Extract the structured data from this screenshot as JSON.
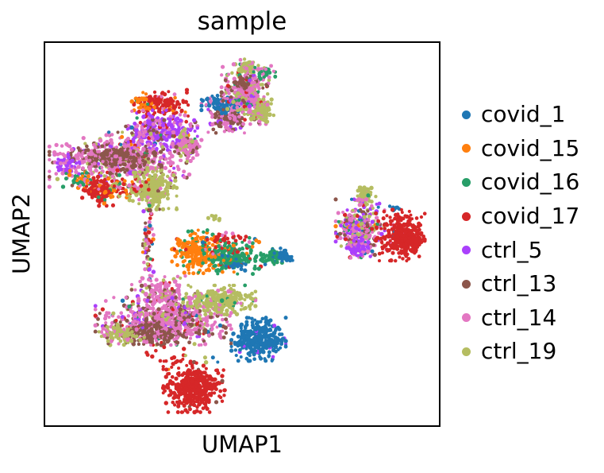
{
  "chart_data": {
    "type": "scatter",
    "title": "sample",
    "xlabel": "UMAP1",
    "ylabel": "UMAP2",
    "axes": {
      "frame": true,
      "x_ticks": [],
      "y_ticks": [],
      "note": "UMAP embedding; no tick marks or tick labels; square black frame"
    },
    "legend": {
      "position": "right-outside",
      "entries": [
        "covid_1",
        "covid_15",
        "covid_16",
        "covid_17",
        "ctrl_5",
        "ctrl_13",
        "ctrl_14",
        "ctrl_19"
      ]
    },
    "palette": {
      "covid_1": "#1f77b4",
      "covid_15": "#ff7f0e",
      "covid_16": "#279e68",
      "covid_17": "#d62728",
      "ctrl_5": "#aa40fc",
      "ctrl_13": "#8c564b",
      "ctrl_14": "#e377c2",
      "ctrl_19": "#b5bd61"
    },
    "point_radius_px": 2.3,
    "seed": 42,
    "clusters": [
      {
        "name": "tl-red-top",
        "cx": 0.294,
        "cy": 0.161,
        "rx": 0.06,
        "ry": 0.033,
        "n": 150,
        "mix": {
          "covid_17": 0.85,
          "covid_15": 0.1,
          "ctrl_14": 0.05
        }
      },
      {
        "name": "tl-orange-specks",
        "cx": 0.25,
        "cy": 0.155,
        "rx": 0.026,
        "ry": 0.022,
        "n": 28,
        "mix": {
          "covid_15": 0.9,
          "covid_16": 0.1
        }
      },
      {
        "name": "tl-violet",
        "cx": 0.29,
        "cy": 0.229,
        "rx": 0.084,
        "ry": 0.046,
        "n": 300,
        "mix": {
          "ctrl_5": 0.58,
          "ctrl_14": 0.18,
          "ctrl_13": 0.1,
          "covid_17": 0.06,
          "covid_15": 0.03,
          "covid_1": 0.02,
          "covid_16": 0.01
        }
      },
      {
        "name": "tl-pink-main",
        "cx": 0.19,
        "cy": 0.305,
        "rx": 0.156,
        "ry": 0.062,
        "n": 560,
        "mix": {
          "ctrl_14": 0.6,
          "ctrl_13": 0.15,
          "ctrl_5": 0.08,
          "ctrl_19": 0.08,
          "covid_17": 0.04,
          "covid_16": 0.03,
          "covid_1": 0.01,
          "covid_15": 0.01
        }
      },
      {
        "name": "tl-brown-band",
        "cx": 0.18,
        "cy": 0.301,
        "rx": 0.1,
        "ry": 0.027,
        "n": 190,
        "mix": {
          "ctrl_13": 0.78,
          "ctrl_14": 0.22
        }
      },
      {
        "name": "tl-purple-left",
        "cx": 0.054,
        "cy": 0.318,
        "rx": 0.028,
        "ry": 0.025,
        "n": 45,
        "mix": {
          "ctrl_5": 0.75,
          "ctrl_14": 0.25
        }
      },
      {
        "name": "tl-teal-orange",
        "cx": 0.09,
        "cy": 0.359,
        "rx": 0.032,
        "ry": 0.021,
        "n": 40,
        "mix": {
          "covid_16": 0.45,
          "covid_15": 0.45,
          "ctrl_14": 0.1
        }
      },
      {
        "name": "tl-red-lower",
        "cx": 0.14,
        "cy": 0.388,
        "rx": 0.04,
        "ry": 0.033,
        "n": 120,
        "mix": {
          "covid_17": 0.92,
          "covid_15": 0.08
        }
      },
      {
        "name": "tl-olive",
        "cx": 0.274,
        "cy": 0.381,
        "rx": 0.052,
        "ry": 0.047,
        "n": 230,
        "mix": {
          "ctrl_19": 0.92,
          "ctrl_14": 0.05,
          "ctrl_13": 0.03
        }
      },
      {
        "name": "tl-mixed-below",
        "cx": 0.2,
        "cy": 0.377,
        "rx": 0.056,
        "ry": 0.029,
        "n": 60,
        "mix": {
          "covid_17": 0.3,
          "covid_15": 0.25,
          "ctrl_19": 0.2,
          "covid_16": 0.15,
          "ctrl_14": 0.1
        }
      },
      {
        "name": "arm-olive-streak",
        "cx": 0.35,
        "cy": 0.247,
        "rx": 0.012,
        "ry": 0.037,
        "n": 25,
        "mix": {
          "ctrl_19": 0.8,
          "ctrl_14": 0.2
        }
      },
      {
        "name": "arm-pink-spur",
        "cx": 0.36,
        "cy": 0.274,
        "rx": 0.036,
        "ry": 0.029,
        "n": 90,
        "mix": {
          "ctrl_14": 0.75,
          "ctrl_13": 0.15,
          "ctrl_19": 0.1
        }
      },
      {
        "name": "arm-brown-lower",
        "cx": 0.46,
        "cy": 0.202,
        "rx": 0.04,
        "ry": 0.029,
        "n": 120,
        "mix": {
          "ctrl_13": 0.65,
          "ctrl_14": 0.3,
          "ctrl_5": 0.05
        }
      },
      {
        "name": "arm-blue",
        "cx": 0.452,
        "cy": 0.157,
        "rx": 0.048,
        "ry": 0.023,
        "n": 110,
        "mix": {
          "covid_1": 0.85,
          "ctrl_14": 0.1,
          "ctrl_5": 0.05
        }
      },
      {
        "name": "arm-pink-top",
        "cx": 0.51,
        "cy": 0.134,
        "rx": 0.054,
        "ry": 0.068,
        "n": 330,
        "mix": {
          "ctrl_14": 0.54,
          "ctrl_19": 0.15,
          "ctrl_13": 0.15,
          "ctrl_5": 0.06,
          "covid_16": 0.06,
          "covid_17": 0.04
        }
      },
      {
        "name": "arm-olive-cap",
        "cx": 0.516,
        "cy": 0.064,
        "rx": 0.022,
        "ry": 0.019,
        "n": 50,
        "mix": {
          "ctrl_19": 0.85,
          "ctrl_14": 0.15
        }
      },
      {
        "name": "arm-green-edge",
        "cx": 0.552,
        "cy": 0.078,
        "rx": 0.028,
        "ry": 0.019,
        "n": 30,
        "mix": {
          "covid_16": 0.7,
          "ctrl_14": 0.3
        }
      },
      {
        "name": "arm-olive-right",
        "cx": 0.552,
        "cy": 0.179,
        "rx": 0.026,
        "ry": 0.027,
        "n": 85,
        "mix": {
          "ctrl_19": 0.9,
          "ctrl_14": 0.1
        }
      },
      {
        "name": "arm-brown-patch",
        "cx": 0.502,
        "cy": 0.105,
        "rx": 0.02,
        "ry": 0.016,
        "n": 35,
        "mix": {
          "ctrl_13": 0.9,
          "ctrl_14": 0.1
        }
      },
      {
        "name": "chain",
        "cx": 0.26,
        "cy": 0.511,
        "rx": 0.013,
        "ry": 0.093,
        "n": 70,
        "mix": {
          "ctrl_14": 0.28,
          "covid_17": 0.16,
          "ctrl_13": 0.15,
          "ctrl_19": 0.12,
          "covid_15": 0.1,
          "ctrl_5": 0.09,
          "covid_1": 0.05,
          "covid_16": 0.05
        }
      },
      {
        "name": "olive-dash",
        "cx": 0.43,
        "cy": 0.46,
        "rx": 0.014,
        "ry": 0.008,
        "n": 12,
        "mix": {
          "ctrl_19": 1.0
        }
      },
      {
        "name": "mid-orange",
        "cx": 0.384,
        "cy": 0.546,
        "rx": 0.054,
        "ry": 0.049,
        "n": 230,
        "mix": {
          "covid_15": 0.8,
          "covid_16": 0.14,
          "covid_17": 0.06
        }
      },
      {
        "name": "mid-green",
        "cx": 0.474,
        "cy": 0.557,
        "rx": 0.064,
        "ry": 0.041,
        "n": 240,
        "mix": {
          "covid_16": 0.74,
          "covid_15": 0.1,
          "covid_1": 0.06,
          "covid_17": 0.05,
          "ctrl_14": 0.05
        }
      },
      {
        "name": "mid-red-specks",
        "cx": 0.46,
        "cy": 0.507,
        "rx": 0.05,
        "ry": 0.019,
        "n": 25,
        "mix": {
          "covid_17": 0.7,
          "ctrl_14": 0.3
        }
      },
      {
        "name": "mid-green-knob",
        "cx": 0.58,
        "cy": 0.559,
        "rx": 0.026,
        "ry": 0.019,
        "n": 60,
        "mix": {
          "covid_16": 0.85,
          "covid_1": 0.15
        }
      },
      {
        "name": "mid-blue-tip",
        "cx": 0.61,
        "cy": 0.559,
        "rx": 0.016,
        "ry": 0.014,
        "n": 45,
        "mix": {
          "covid_1": 0.95,
          "covid_16": 0.05
        }
      },
      {
        "name": "mid-blue-specks",
        "cx": 0.49,
        "cy": 0.584,
        "rx": 0.024,
        "ry": 0.016,
        "n": 12,
        "mix": {
          "covid_1": 0.7,
          "ctrl_13": 0.3
        }
      },
      {
        "name": "bl-pink-spur",
        "cx": 0.3,
        "cy": 0.652,
        "rx": 0.07,
        "ry": 0.037,
        "n": 160,
        "mix": {
          "ctrl_14": 0.7,
          "ctrl_13": 0.1,
          "ctrl_19": 0.1,
          "ctrl_5": 0.05,
          "covid_17": 0.05
        }
      },
      {
        "name": "bl-pink-main",
        "cx": 0.3,
        "cy": 0.728,
        "rx": 0.15,
        "ry": 0.054,
        "n": 620,
        "mix": {
          "ctrl_14": 0.58,
          "ctrl_13": 0.2,
          "ctrl_19": 0.08,
          "ctrl_5": 0.06,
          "covid_17": 0.04,
          "covid_1": 0.02,
          "covid_16": 0.02
        }
      },
      {
        "name": "bl-brown-band",
        "cx": 0.28,
        "cy": 0.759,
        "rx": 0.11,
        "ry": 0.025,
        "n": 180,
        "mix": {
          "ctrl_13": 0.75,
          "ctrl_14": 0.25
        }
      },
      {
        "name": "bl-olive",
        "cx": 0.442,
        "cy": 0.672,
        "rx": 0.08,
        "ry": 0.033,
        "n": 270,
        "mix": {
          "ctrl_19": 0.9,
          "ctrl_14": 0.06,
          "covid_16": 0.04
        }
      },
      {
        "name": "bl-olive-tail",
        "cx": 0.194,
        "cy": 0.763,
        "rx": 0.05,
        "ry": 0.023,
        "n": 90,
        "mix": {
          "ctrl_19": 0.72,
          "ctrl_14": 0.28
        }
      },
      {
        "name": "bl-blue",
        "cx": 0.542,
        "cy": 0.775,
        "rx": 0.06,
        "ry": 0.049,
        "n": 340,
        "mix": {
          "covid_1": 0.97,
          "ctrl_5": 0.03
        }
      },
      {
        "name": "bl-red-trail",
        "cx": 0.3,
        "cy": 0.821,
        "rx": 0.056,
        "ry": 0.029,
        "n": 16,
        "mix": {
          "covid_17": 0.75,
          "covid_15": 0.13,
          "ctrl_19": 0.12
        }
      },
      {
        "name": "bl-red-big",
        "cx": 0.378,
        "cy": 0.899,
        "rx": 0.068,
        "ry": 0.058,
        "n": 400,
        "mix": {
          "covid_17": 0.98,
          "ctrl_13": 0.02
        }
      },
      {
        "name": "right-olive-top",
        "cx": 0.812,
        "cy": 0.4,
        "rx": 0.024,
        "ry": 0.023,
        "n": 70,
        "mix": {
          "ctrl_19": 0.85,
          "covid_16": 0.1,
          "ctrl_14": 0.05
        }
      },
      {
        "name": "right-mixed",
        "cx": 0.8,
        "cy": 0.485,
        "rx": 0.054,
        "ry": 0.066,
        "n": 340,
        "mix": {
          "ctrl_14": 0.38,
          "ctrl_13": 0.15,
          "ctrl_5": 0.15,
          "ctrl_19": 0.13,
          "covid_17": 0.08,
          "covid_16": 0.05,
          "covid_1": 0.04,
          "covid_15": 0.02
        }
      },
      {
        "name": "right-violet-bottom",
        "cx": 0.796,
        "cy": 0.538,
        "rx": 0.026,
        "ry": 0.021,
        "n": 60,
        "mix": {
          "ctrl_5": 0.78,
          "ctrl_14": 0.22
        }
      },
      {
        "name": "right-blue-specks",
        "cx": 0.89,
        "cy": 0.435,
        "rx": 0.016,
        "ry": 0.01,
        "n": 10,
        "mix": {
          "covid_1": 1.0
        }
      },
      {
        "name": "right-red",
        "cx": 0.902,
        "cy": 0.503,
        "rx": 0.054,
        "ry": 0.058,
        "n": 280,
        "mix": {
          "covid_17": 0.93,
          "ctrl_14": 0.04,
          "covid_1": 0.03
        }
      },
      {
        "name": "right-red-dense",
        "cx": 0.924,
        "cy": 0.518,
        "rx": 0.032,
        "ry": 0.023,
        "n": 130,
        "mix": {
          "covid_17": 1.0
        }
      },
      {
        "name": "bl-strays",
        "cx": 0.4,
        "cy": 0.827,
        "rx": 0.07,
        "ry": 0.012,
        "n": 6,
        "mix": {
          "covid_15": 0.3,
          "covid_1": 0.3,
          "ctrl_19": 0.4
        }
      }
    ]
  }
}
